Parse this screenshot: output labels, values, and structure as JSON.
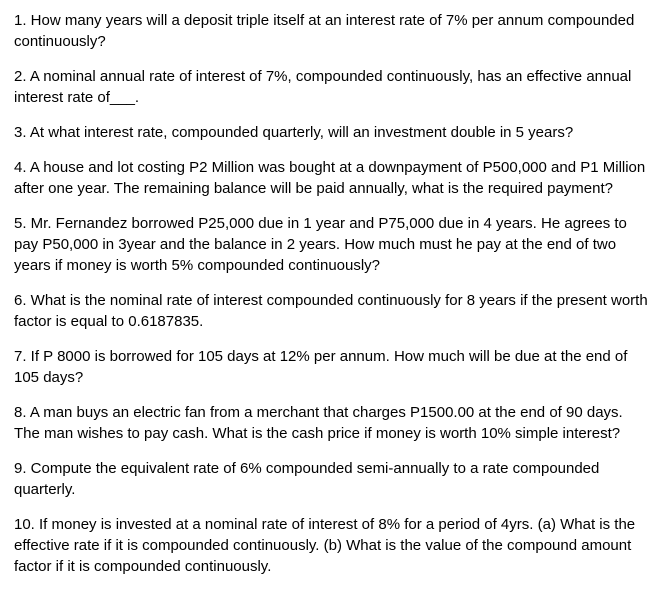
{
  "text_color": "#000000",
  "background_color": "#ffffff",
  "font_size": 15,
  "questions": {
    "q1": "1. How many years will a deposit triple itself at an interest rate of 7% per annum compounded continuously?",
    "q2": "2. A nominal annual rate of interest of 7%, compounded continuously, has an effective annual interest rate of___.",
    "q3": "3. At what interest rate, compounded quarterly, will an investment double in 5 years?",
    "q4": "4. A house and lot costing P2 Million was bought at a downpayment of P500,000 and P1 Million after one year. The remaining balance will be paid annually, what is the required payment?",
    "q5": "5. Mr. Fernandez borrowed P25,000 due in 1 year and P75,000 due in 4 years. He agrees to pay P50,000 in 3year and the balance in 2 years. How much must he pay at the end of two years if money is worth 5% compounded continuously?",
    "q6": "6. What is the nominal rate of interest compounded continuously for 8 years if the present worth factor is equal to 0.6187835.",
    "q7": "7. If P 8000 is borrowed for 105 days at 12% per annum. How much will be due at the end of 105 days?",
    "q8": "8. A man buys an electric fan from a merchant that charges P1500.00 at the end of 90 days. The man wishes to pay cash. What is the cash price if money is worth 10% simple interest?",
    "q9": "9. Compute the equivalent rate of 6% compounded semi-annually to a rate compounded quarterly.",
    "q10": "10. If money is invested at a nominal rate of interest of 8% for a period of 4yrs. (a) What is the effective rate if it is compounded continuously. (b) What is the value of the compound amount factor if it is compounded continuously."
  }
}
